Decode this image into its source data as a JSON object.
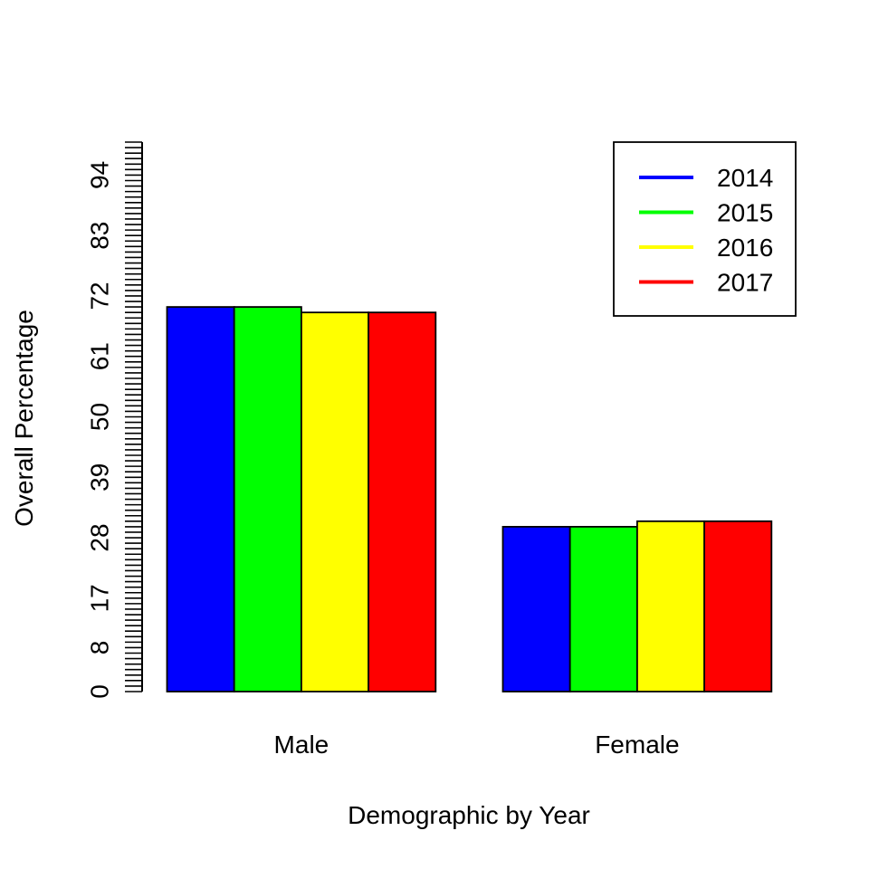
{
  "chart_data": {
    "type": "bar",
    "title": "",
    "xlabel": "Demographic by Year",
    "ylabel": "Overall Percentage",
    "ylim": [
      0,
      100
    ],
    "yticks": [
      0,
      8,
      17,
      28,
      39,
      50,
      61,
      72,
      83,
      94
    ],
    "categories": [
      "Male",
      "Female"
    ],
    "series": [
      {
        "name": "2014",
        "color": "#0000ff",
        "values": [
          70,
          30
        ]
      },
      {
        "name": "2015",
        "color": "#00ff00",
        "values": [
          70,
          30
        ]
      },
      {
        "name": "2016",
        "color": "#ffff00",
        "values": [
          69,
          31
        ]
      },
      {
        "name": "2017",
        "color": "#ff0000",
        "values": [
          69,
          31
        ]
      }
    ],
    "legend_position": "top-right",
    "grid": false
  }
}
